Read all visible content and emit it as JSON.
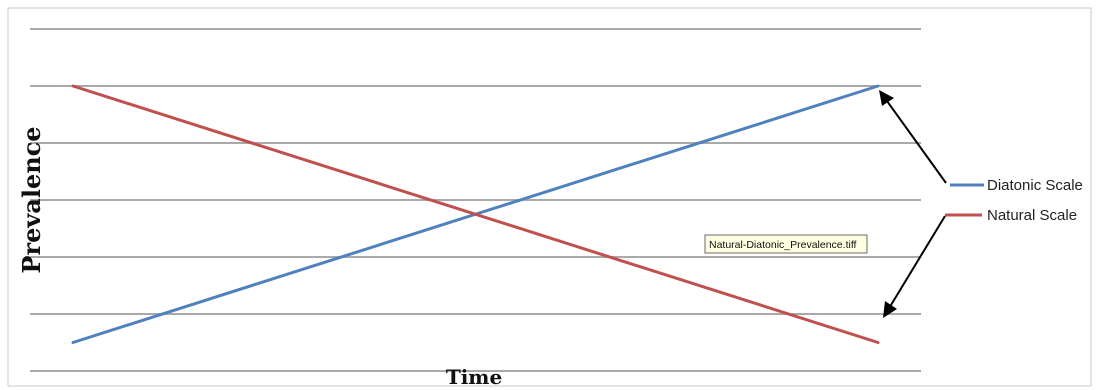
{
  "chart_data": {
    "type": "line",
    "title": "",
    "xlabel": "Time",
    "ylabel": "Prevalence",
    "x": [
      0,
      1
    ],
    "xlim": [
      0,
      1
    ],
    "ylim": [
      0,
      6
    ],
    "y_gridlines": [
      0,
      1,
      2,
      3,
      4,
      5,
      6
    ],
    "grid": true,
    "legend_position": "right",
    "series": [
      {
        "name": "Diatonic Scale",
        "color": "#4f81bd",
        "values": [
          0.5,
          5
        ]
      },
      {
        "name": "Natural Scale",
        "color": "#c0504d",
        "values": [
          5,
          0.5
        ]
      }
    ],
    "annotations": {
      "tooltip": "Natural-Diatonic_Prevalence.tiff",
      "arrows": "legend entries point to the end of each line"
    }
  }
}
